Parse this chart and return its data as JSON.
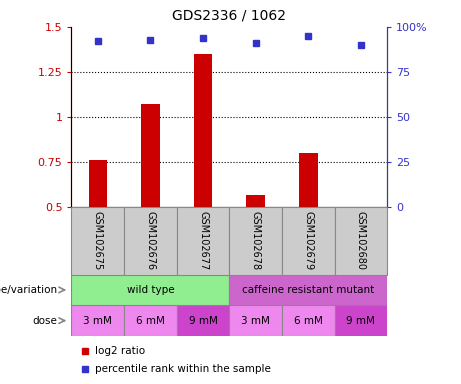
{
  "title": "GDS2336 / 1062",
  "samples": [
    "GSM102675",
    "GSM102676",
    "GSM102677",
    "GSM102678",
    "GSM102679",
    "GSM102680"
  ],
  "log2_ratio": [
    0.76,
    1.07,
    1.35,
    0.57,
    0.8,
    0.5
  ],
  "percentile_rank": [
    92,
    93,
    94,
    91,
    95,
    90
  ],
  "ylim_left": [
    0.5,
    1.5
  ],
  "yticks_left": [
    0.5,
    0.75,
    1.0,
    1.25,
    1.5
  ],
  "ytick_labels_left": [
    "0.5",
    "0.75",
    "1",
    "1.25",
    "1.5"
  ],
  "yticks_right": [
    0,
    25,
    50,
    75,
    100
  ],
  "ytick_labels_right": [
    "0",
    "25",
    "50",
    "75",
    "100%"
  ],
  "bar_color": "#cc0000",
  "dot_color": "#3333cc",
  "genotype_groups": [
    {
      "label": "wild type",
      "start": 0,
      "end": 3,
      "color": "#90ee90"
    },
    {
      "label": "caffeine resistant mutant",
      "start": 3,
      "end": 6,
      "color": "#cc66cc"
    }
  ],
  "dose_labels": [
    "3 mM",
    "6 mM",
    "9 mM",
    "3 mM",
    "6 mM",
    "9 mM"
  ],
  "dose_colors": [
    "#ee88ee",
    "#ee88ee",
    "#cc44cc",
    "#ee88ee",
    "#ee88ee",
    "#cc44cc"
  ],
  "legend_bar_label": "log2 ratio",
  "legend_dot_label": "percentile rank within the sample",
  "sample_box_color": "#cccccc",
  "border_color": "#888888",
  "row_label_color": "#888888",
  "tick_fontsize": 8,
  "bar_width": 0.35
}
